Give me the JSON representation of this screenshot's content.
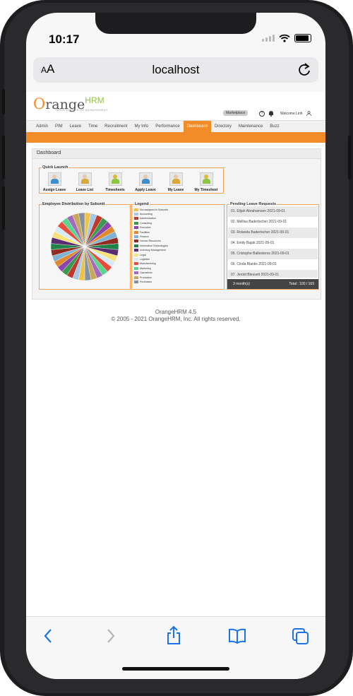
{
  "status": {
    "time": "10:17"
  },
  "browser": {
    "text_size_small": "A",
    "text_size_large": "A",
    "url": "localhost"
  },
  "header": {
    "logo_word": "range",
    "logo_o": "O",
    "logo_hrm": "HRM",
    "logo_tagline": "OPEN SOURCE HR MANAGEMENT",
    "marketplace_label": "Marketplace",
    "help_glyph": "?",
    "welcome": "Welcome Linh"
  },
  "menu": {
    "items": [
      "Admin",
      "PIM",
      "Leave",
      "Time",
      "Recruitment",
      "My Info",
      "Performance",
      "Dashboard",
      "Directory",
      "Maintenance",
      "Buzz"
    ],
    "active": "Dashboard"
  },
  "dashboard": {
    "title": "Dashboard",
    "quick_launch": {
      "title": "Quick Launch",
      "items": [
        "Assign Leave",
        "Leave List",
        "Timesheets",
        "Apply Leave",
        "My Leave",
        "My Timesheet"
      ]
    },
    "employee_distribution": {
      "title": "Employee Distribution by Subunit"
    },
    "legend": {
      "title": "Legend",
      "items": [
        {
          "label": "Not assigned to Subunits",
          "color": "#f1c24b"
        },
        {
          "label": "Accounting",
          "color": "#a7c7e7"
        },
        {
          "label": "Administration",
          "color": "#c0392b"
        },
        {
          "label": "Consulting",
          "color": "#3a9a4f"
        },
        {
          "label": "Executive",
          "color": "#8e44ad"
        },
        {
          "label": "Facilities",
          "color": "#e08a2c"
        },
        {
          "label": "Finance",
          "color": "#7fb3d5"
        },
        {
          "label": "Human Resources",
          "color": "#922b21"
        },
        {
          "label": "Information Technologies",
          "color": "#1e8449"
        },
        {
          "label": "Inventory Management",
          "color": "#5b2c6f"
        },
        {
          "label": "Legal",
          "color": "#f7e27a"
        },
        {
          "label": "Logistics",
          "color": "#d6eaf8"
        },
        {
          "label": "Manufacturing",
          "color": "#e74c3c"
        },
        {
          "label": "Marketing",
          "color": "#58d68d"
        },
        {
          "label": "Operations",
          "color": "#a569bd"
        },
        {
          "label": "Production",
          "color": "#c8a85a"
        },
        {
          "label": "Purchases",
          "color": "#85929e"
        }
      ]
    },
    "pending_leave": {
      "title": "Pending Leave Requests",
      "rows": [
        "01. Elijah Abrahamsen 2021-09-01",
        "02. Mellisa Badertscher 2021-09-01",
        "03. Rolanda Badertscher 2021-09-01",
        "04. Emily Bajak 2021-09-01",
        "05. Cristophe Ballesteros 2021-09-01",
        "06. Cinda Blanks 2021-09-01",
        "07. Jerold Blessett 2021-09-01"
      ],
      "footer_period": "3 month(s)",
      "footer_total": "Total : 100 / 169"
    }
  },
  "footer": {
    "version": "OrangeHRM 4.5",
    "copyright": "© 2005 - 2021 OrangeHRM, Inc. All rights reserved."
  },
  "colors": {
    "accent": "#f28c28",
    "brand_green": "#8dc63f",
    "ios_blue": "#1a73e8"
  },
  "toolbar": {
    "icons": [
      "back-icon",
      "forward-icon",
      "share-icon",
      "bookmarks-icon",
      "tabs-icon"
    ]
  }
}
